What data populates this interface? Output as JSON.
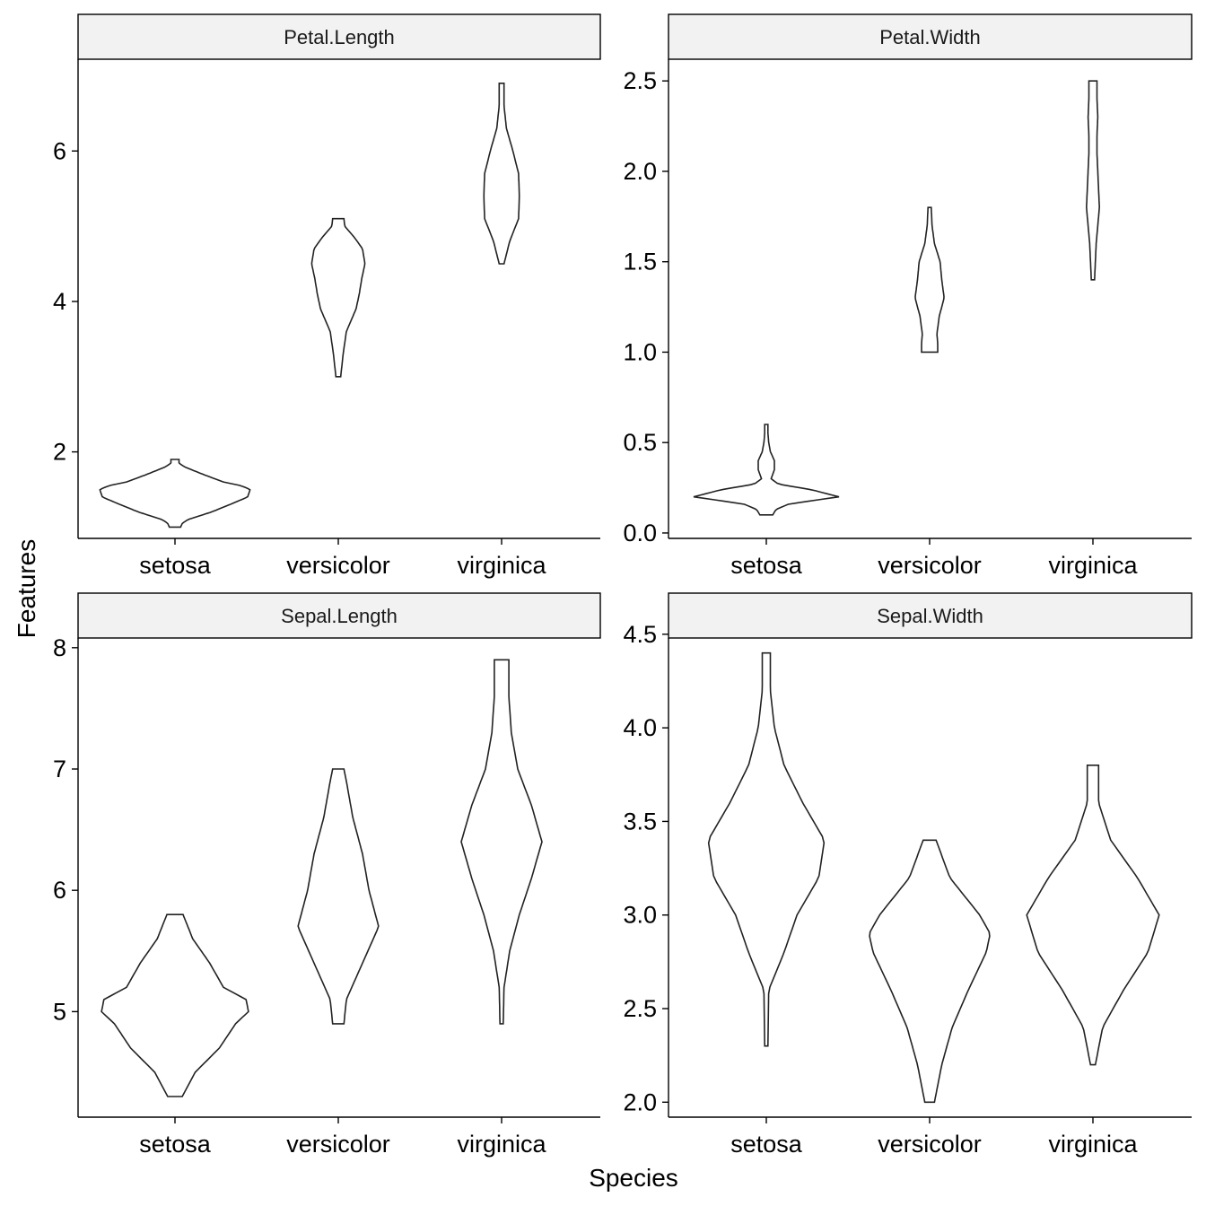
{
  "chart_data": {
    "type": "violin",
    "xlabel": "Species",
    "ylabel": "Features",
    "categories": [
      "setosa",
      "versicolor",
      "virginica"
    ],
    "panels": [
      {
        "title": "Petal.Length",
        "ylim": [
          0.85,
          7.22
        ],
        "yticks": [
          2,
          4,
          6
        ],
        "tick_labels": [
          "2",
          "4",
          "6"
        ],
        "violins": [
          {
            "category": "setosa",
            "min": 1.0,
            "max": 1.9,
            "profile": [
              [
                1.0,
                0.07
              ],
              [
                1.05,
                0.09
              ],
              [
                1.1,
                0.16
              ],
              [
                1.2,
                0.45
              ],
              [
                1.3,
                0.68
              ],
              [
                1.4,
                0.9
              ],
              [
                1.5,
                0.93
              ],
              [
                1.55,
                0.82
              ],
              [
                1.6,
                0.6
              ],
              [
                1.7,
                0.35
              ],
              [
                1.8,
                0.12
              ],
              [
                1.85,
                0.05
              ],
              [
                1.9,
                0.05
              ]
            ]
          },
          {
            "category": "versicolor",
            "min": 3.0,
            "max": 5.1,
            "profile": [
              [
                3.0,
                0.03
              ],
              [
                3.3,
                0.06
              ],
              [
                3.6,
                0.1
              ],
              [
                3.9,
                0.22
              ],
              [
                4.1,
                0.26
              ],
              [
                4.3,
                0.29
              ],
              [
                4.5,
                0.33
              ],
              [
                4.7,
                0.3
              ],
              [
                4.85,
                0.2
              ],
              [
                5.0,
                0.08
              ],
              [
                5.1,
                0.07
              ]
            ]
          },
          {
            "category": "virginica",
            "min": 4.5,
            "max": 6.9,
            "profile": [
              [
                4.5,
                0.03
              ],
              [
                4.8,
                0.1
              ],
              [
                5.1,
                0.21
              ],
              [
                5.4,
                0.22
              ],
              [
                5.7,
                0.21
              ],
              [
                6.0,
                0.14
              ],
              [
                6.3,
                0.06
              ],
              [
                6.6,
                0.03
              ],
              [
                6.9,
                0.03
              ]
            ]
          }
        ]
      },
      {
        "title": "Petal.Width",
        "ylim": [
          -0.03,
          2.62
        ],
        "yticks": [
          0.0,
          0.5,
          1.0,
          1.5,
          2.0,
          2.5
        ],
        "tick_labels": [
          "0.0",
          "0.5",
          "1.0",
          "1.5",
          "2.0",
          "2.5"
        ],
        "violins": [
          {
            "category": "setosa",
            "min": 0.1,
            "max": 0.6,
            "profile": [
              [
                0.1,
                0.08
              ],
              [
                0.13,
                0.12
              ],
              [
                0.16,
                0.28
              ],
              [
                0.2,
                0.9
              ],
              [
                0.24,
                0.55
              ],
              [
                0.27,
                0.15
              ],
              [
                0.3,
                0.06
              ],
              [
                0.35,
                0.1
              ],
              [
                0.4,
                0.1
              ],
              [
                0.45,
                0.05
              ],
              [
                0.5,
                0.03
              ],
              [
                0.55,
                0.02
              ],
              [
                0.6,
                0.02
              ]
            ]
          },
          {
            "category": "versicolor",
            "min": 1.0,
            "max": 1.8,
            "profile": [
              [
                1.0,
                0.1
              ],
              [
                1.05,
                0.1
              ],
              [
                1.1,
                0.09
              ],
              [
                1.2,
                0.12
              ],
              [
                1.3,
                0.18
              ],
              [
                1.4,
                0.15
              ],
              [
                1.5,
                0.13
              ],
              [
                1.6,
                0.06
              ],
              [
                1.7,
                0.03
              ],
              [
                1.8,
                0.02
              ]
            ]
          },
          {
            "category": "virginica",
            "min": 1.4,
            "max": 2.5,
            "profile": [
              [
                1.4,
                0.02
              ],
              [
                1.6,
                0.04
              ],
              [
                1.8,
                0.08
              ],
              [
                1.9,
                0.07
              ],
              [
                2.0,
                0.06
              ],
              [
                2.1,
                0.05
              ],
              [
                2.2,
                0.05
              ],
              [
                2.3,
                0.06
              ],
              [
                2.4,
                0.05
              ],
              [
                2.5,
                0.05
              ]
            ]
          }
        ]
      },
      {
        "title": "Sepal.Length",
        "ylim": [
          4.13,
          8.08
        ],
        "yticks": [
          5,
          6,
          7,
          8
        ],
        "tick_labels": [
          "5",
          "6",
          "7",
          "8"
        ],
        "violins": [
          {
            "category": "setosa",
            "min": 4.3,
            "max": 5.8,
            "profile": [
              [
                4.3,
                0.09
              ],
              [
                4.5,
                0.25
              ],
              [
                4.7,
                0.55
              ],
              [
                4.9,
                0.75
              ],
              [
                5.0,
                0.91
              ],
              [
                5.1,
                0.88
              ],
              [
                5.2,
                0.6
              ],
              [
                5.4,
                0.43
              ],
              [
                5.6,
                0.22
              ],
              [
                5.8,
                0.1
              ]
            ]
          },
          {
            "category": "versicolor",
            "min": 4.9,
            "max": 7.0,
            "profile": [
              [
                4.9,
                0.07
              ],
              [
                5.1,
                0.1
              ],
              [
                5.4,
                0.3
              ],
              [
                5.7,
                0.5
              ],
              [
                6.0,
                0.38
              ],
              [
                6.3,
                0.3
              ],
              [
                6.6,
                0.18
              ],
              [
                6.9,
                0.1
              ],
              [
                7.0,
                0.07
              ]
            ]
          },
          {
            "category": "virginica",
            "min": 4.9,
            "max": 7.9,
            "profile": [
              [
                4.9,
                0.02
              ],
              [
                5.2,
                0.03
              ],
              [
                5.5,
                0.1
              ],
              [
                5.8,
                0.22
              ],
              [
                6.1,
                0.37
              ],
              [
                6.4,
                0.5
              ],
              [
                6.7,
                0.37
              ],
              [
                7.0,
                0.2
              ],
              [
                7.3,
                0.12
              ],
              [
                7.6,
                0.09
              ],
              [
                7.9,
                0.09
              ]
            ]
          }
        ]
      },
      {
        "title": "Sepal.Width",
        "ylim": [
          1.92,
          4.48
        ],
        "yticks": [
          2.0,
          2.5,
          3.0,
          3.5,
          4.0,
          4.5
        ],
        "tick_labels": [
          "2.0",
          "2.5",
          "3.0",
          "3.5",
          "4.0",
          "4.5"
        ],
        "violins": [
          {
            "category": "setosa",
            "min": 2.3,
            "max": 4.4,
            "profile": [
              [
                2.3,
                0.02
              ],
              [
                2.6,
                0.03
              ],
              [
                2.8,
                0.22
              ],
              [
                3.0,
                0.38
              ],
              [
                3.2,
                0.65
              ],
              [
                3.4,
                0.72
              ],
              [
                3.6,
                0.45
              ],
              [
                3.8,
                0.22
              ],
              [
                4.0,
                0.1
              ],
              [
                4.2,
                0.05
              ],
              [
                4.4,
                0.05
              ]
            ]
          },
          {
            "category": "versicolor",
            "min": 2.0,
            "max": 3.4,
            "profile": [
              [
                2.0,
                0.06
              ],
              [
                2.2,
                0.15
              ],
              [
                2.4,
                0.28
              ],
              [
                2.6,
                0.48
              ],
              [
                2.8,
                0.7
              ],
              [
                2.9,
                0.75
              ],
              [
                3.0,
                0.62
              ],
              [
                3.2,
                0.25
              ],
              [
                3.4,
                0.08
              ]
            ]
          },
          {
            "category": "virginica",
            "min": 2.2,
            "max": 3.8,
            "profile": [
              [
                2.2,
                0.03
              ],
              [
                2.4,
                0.12
              ],
              [
                2.6,
                0.38
              ],
              [
                2.8,
                0.68
              ],
              [
                3.0,
                0.82
              ],
              [
                3.2,
                0.55
              ],
              [
                3.4,
                0.22
              ],
              [
                3.6,
                0.07
              ],
              [
                3.8,
                0.07
              ]
            ]
          }
        ]
      }
    ]
  }
}
